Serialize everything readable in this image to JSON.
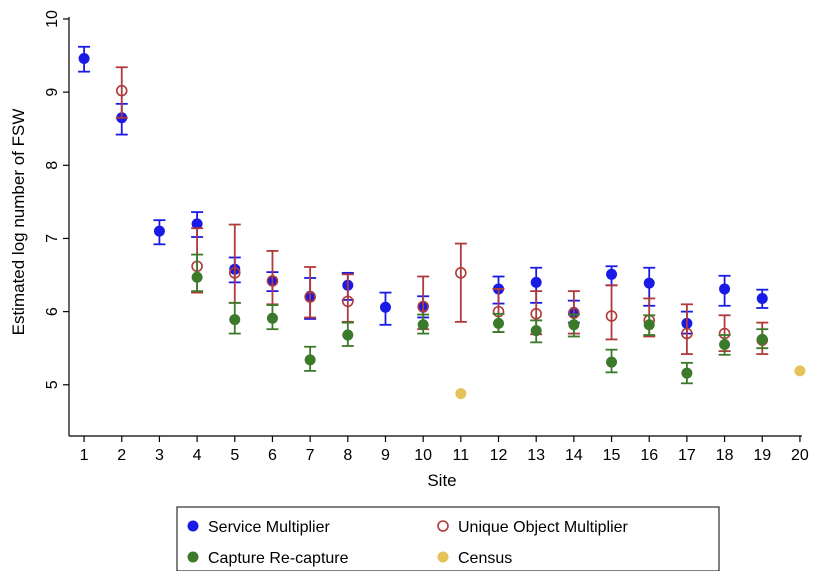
{
  "chart_data": {
    "type": "scatter",
    "xlabel": "Site",
    "ylabel": "Estimated log number of FSW",
    "xlim": [
      0.6,
      20.4
    ],
    "ylim": [
      4.3,
      10.15
    ],
    "x_ticks": [
      1,
      2,
      3,
      4,
      5,
      6,
      7,
      8,
      9,
      10,
      11,
      12,
      13,
      14,
      15,
      16,
      17,
      18,
      19,
      20
    ],
    "y_ticks": [
      5,
      6,
      7,
      8,
      9,
      10
    ],
    "grid": false,
    "legend_position": "bottom",
    "series": [
      {
        "name": "Service Multiplier",
        "key": "service",
        "color": "#1a1ae6",
        "marker": "filled-circle",
        "points": [
          {
            "x": 1,
            "y": 9.46,
            "lo": 9.28,
            "hi": 9.62
          },
          {
            "x": 2,
            "y": 8.65,
            "lo": 8.42,
            "hi": 8.84
          },
          {
            "x": 3,
            "y": 7.1,
            "lo": 6.92,
            "hi": 7.25
          },
          {
            "x": 4,
            "y": 7.2,
            "lo": 7.02,
            "hi": 7.36
          },
          {
            "x": 5,
            "y": 6.58,
            "lo": 6.4,
            "hi": 6.74
          },
          {
            "x": 6,
            "y": 6.42,
            "lo": 6.28,
            "hi": 6.54
          },
          {
            "x": 7,
            "y": 6.21,
            "lo": 5.9,
            "hi": 6.46
          },
          {
            "x": 8,
            "y": 6.36,
            "lo": 6.16,
            "hi": 6.53
          },
          {
            "x": 9,
            "y": 6.06,
            "lo": 5.82,
            "hi": 6.26
          },
          {
            "x": 10,
            "y": 6.06,
            "lo": 5.92,
            "hi": 6.21
          },
          {
            "x": 12,
            "y": 6.31,
            "lo": 6.11,
            "hi": 6.48
          },
          {
            "x": 13,
            "y": 6.4,
            "lo": 6.12,
            "hi": 6.6
          },
          {
            "x": 14,
            "y": 5.99,
            "lo": 5.85,
            "hi": 6.15
          },
          {
            "x": 15,
            "y": 6.51,
            "lo": 6.36,
            "hi": 6.62
          },
          {
            "x": 16,
            "y": 6.39,
            "lo": 6.08,
            "hi": 6.6
          },
          {
            "x": 17,
            "y": 5.84,
            "lo": 5.7,
            "hi": 6.0
          },
          {
            "x": 18,
            "y": 6.31,
            "lo": 6.08,
            "hi": 6.49
          },
          {
            "x": 19,
            "y": 6.18,
            "lo": 6.05,
            "hi": 6.3
          }
        ]
      },
      {
        "name": "Unique Object Multiplier",
        "key": "unique",
        "color": "#b03a3a",
        "marker": "hollow-circle",
        "points": [
          {
            "x": 2,
            "y": 9.02,
            "lo": 8.65,
            "hi": 9.34
          },
          {
            "x": 4,
            "y": 6.62,
            "lo": 6.26,
            "hi": 7.14
          },
          {
            "x": 5,
            "y": 6.53,
            "lo": 6.12,
            "hi": 7.19
          },
          {
            "x": 6,
            "y": 6.42,
            "lo": 6.1,
            "hi": 6.83
          },
          {
            "x": 7,
            "y": 6.2,
            "lo": 5.92,
            "hi": 6.61
          },
          {
            "x": 8,
            "y": 6.14,
            "lo": 5.86,
            "hi": 6.51
          },
          {
            "x": 10,
            "y": 6.07,
            "lo": 5.76,
            "hi": 6.48
          },
          {
            "x": 11,
            "y": 6.53,
            "lo": 5.86,
            "hi": 6.93
          },
          {
            "x": 12,
            "y": 6.0,
            "lo": 5.72,
            "hi": 6.31
          },
          {
            "x": 13,
            "y": 5.97,
            "lo": 5.69,
            "hi": 6.28
          },
          {
            "x": 14,
            "y": 5.98,
            "lo": 5.7,
            "hi": 6.28
          },
          {
            "x": 15,
            "y": 5.94,
            "lo": 5.62,
            "hi": 6.36
          },
          {
            "x": 16,
            "y": 5.88,
            "lo": 5.66,
            "hi": 6.18
          },
          {
            "x": 17,
            "y": 5.7,
            "lo": 5.42,
            "hi": 6.1
          },
          {
            "x": 18,
            "y": 5.7,
            "lo": 5.46,
            "hi": 5.95
          },
          {
            "x": 19,
            "y": 5.61,
            "lo": 5.42,
            "hi": 5.85
          }
        ]
      },
      {
        "name": "Capture Re-capture",
        "key": "capture",
        "color": "#3a7a2a",
        "marker": "filled-circle",
        "points": [
          {
            "x": 4,
            "y": 6.47,
            "lo": 6.28,
            "hi": 6.78
          },
          {
            "x": 5,
            "y": 5.89,
            "lo": 5.7,
            "hi": 6.12
          },
          {
            "x": 6,
            "y": 5.91,
            "lo": 5.76,
            "hi": 6.09
          },
          {
            "x": 7,
            "y": 5.34,
            "lo": 5.19,
            "hi": 5.52
          },
          {
            "x": 8,
            "y": 5.68,
            "lo": 5.53,
            "hi": 5.85
          },
          {
            "x": 10,
            "y": 5.82,
            "lo": 5.7,
            "hi": 5.96
          },
          {
            "x": 12,
            "y": 5.84,
            "lo": 5.72,
            "hi": 5.97
          },
          {
            "x": 13,
            "y": 5.74,
            "lo": 5.58,
            "hi": 5.88
          },
          {
            "x": 14,
            "y": 5.82,
            "lo": 5.66,
            "hi": 5.96
          },
          {
            "x": 15,
            "y": 5.31,
            "lo": 5.17,
            "hi": 5.48
          },
          {
            "x": 16,
            "y": 5.82,
            "lo": 5.68,
            "hi": 5.95
          },
          {
            "x": 17,
            "y": 5.16,
            "lo": 5.02,
            "hi": 5.3
          },
          {
            "x": 18,
            "y": 5.55,
            "lo": 5.41,
            "hi": 5.68
          },
          {
            "x": 19,
            "y": 5.62,
            "lo": 5.5,
            "hi": 5.76
          }
        ]
      },
      {
        "name": "Census",
        "key": "census",
        "color": "#e6c35a",
        "marker": "filled-circle",
        "points": [
          {
            "x": 11,
            "y": 4.88
          },
          {
            "x": 20,
            "y": 5.19
          }
        ]
      }
    ]
  }
}
